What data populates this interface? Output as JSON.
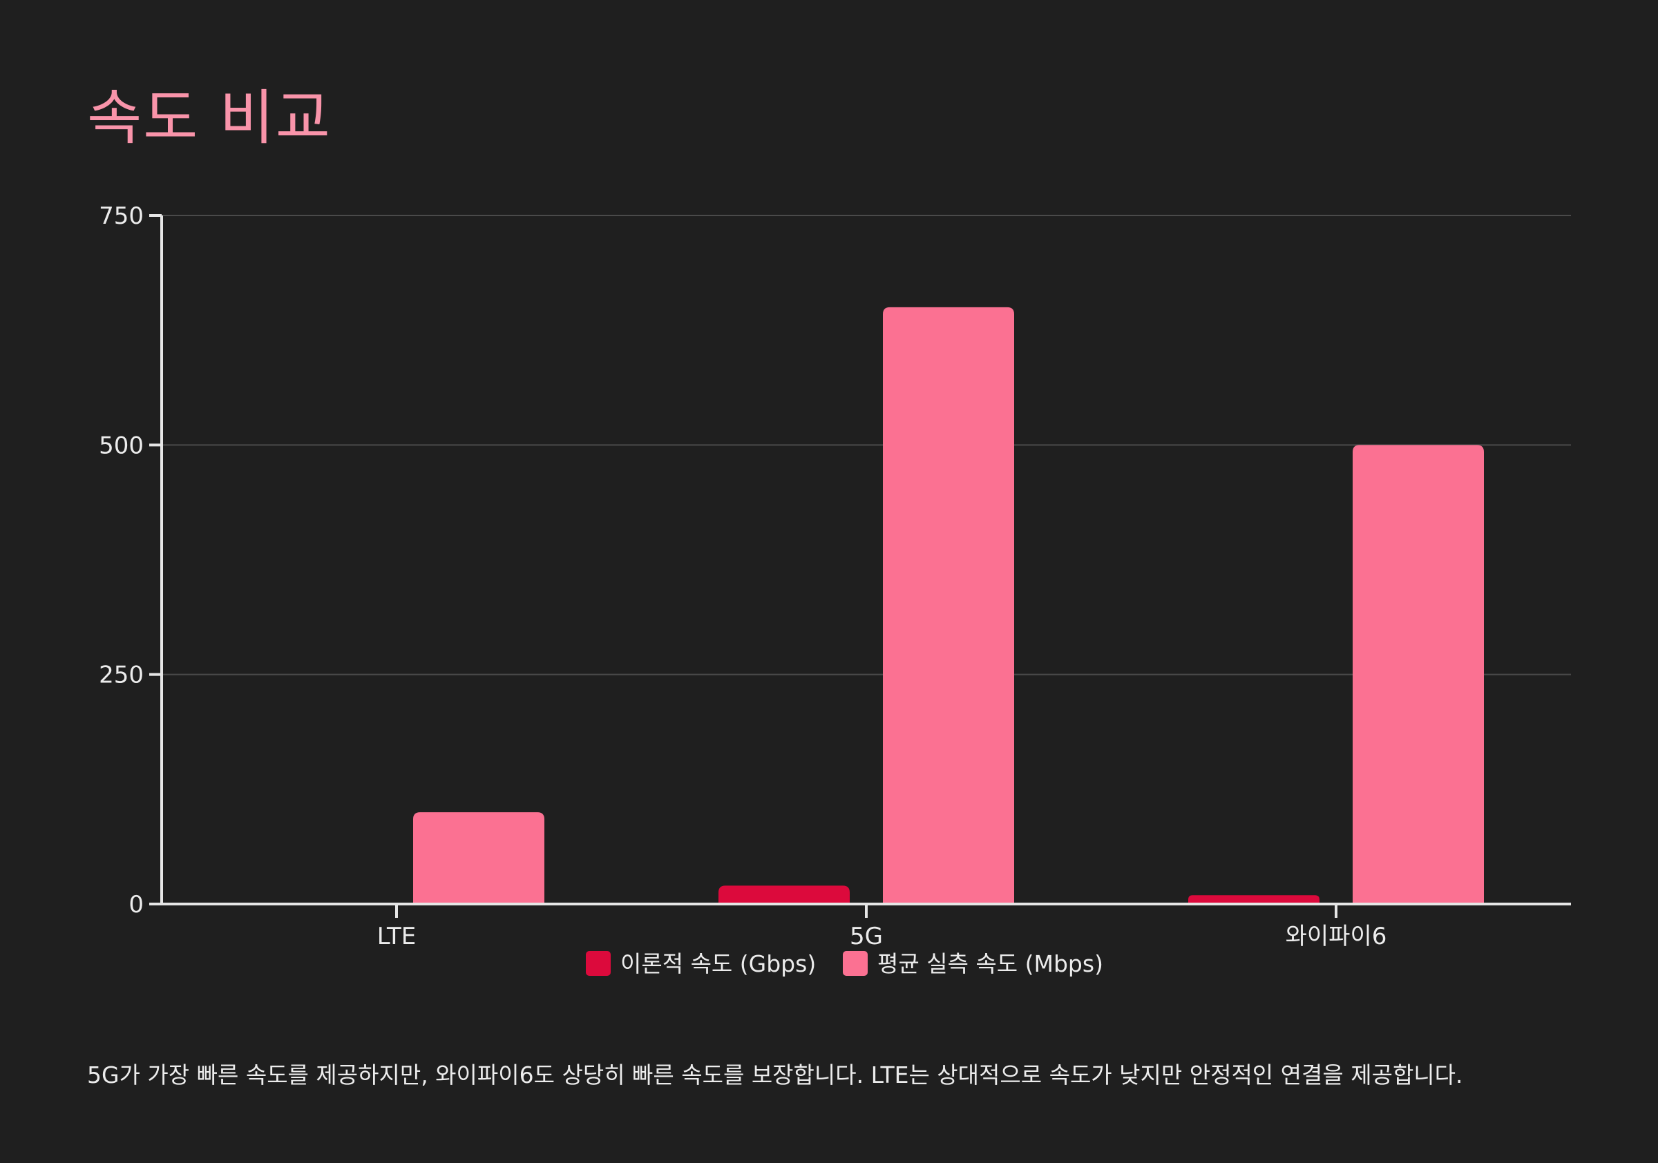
{
  "page": {
    "title": "속도 비교",
    "caption": "5G가 가장 빠른 속도를 제공하지만, 와이파이6도 상당히 빠른 속도를 보장합니다. LTE는 상대적으로 속도가 낮지만 안정적인 연결을 제공합니다."
  },
  "chart_data": {
    "type": "bar",
    "title": "속도 비교",
    "xlabel": "",
    "ylabel": "",
    "categories": [
      "LTE",
      "5G",
      "와이파이6"
    ],
    "series": [
      {
        "name": "이론적 속도 (Gbps)",
        "values": [
          1,
          20,
          9.6
        ],
        "color": "#dc0a3c"
      },
      {
        "name": "평균 실측 속도 (Mbps)",
        "values": [
          100,
          650,
          500
        ],
        "color": "#fb7192"
      }
    ],
    "ylim": [
      0,
      750
    ],
    "yticks": [
      0,
      250,
      500,
      750
    ],
    "grid": true,
    "legend": "bottom-center"
  },
  "colors": {
    "background": "#1f1f1f",
    "title": "#f994aa",
    "axis": "#e6e6e6",
    "grid": "#4a4a4a",
    "text": "#ececec"
  }
}
